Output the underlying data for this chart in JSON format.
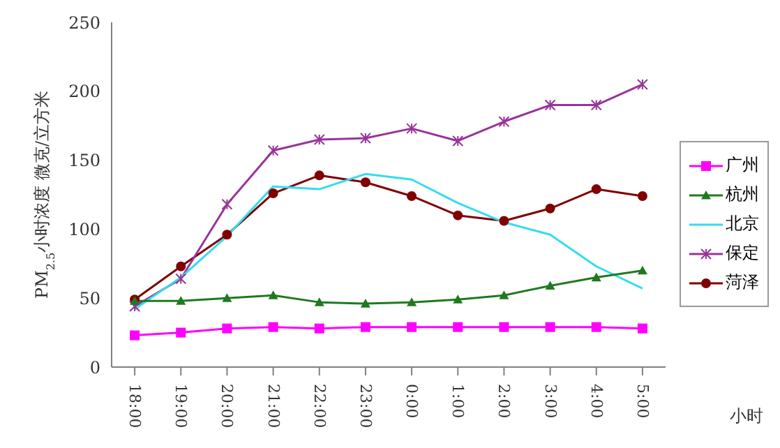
{
  "chart_data": {
    "type": "line",
    "ylabel": "PM$_{2.5}$小时浓度 微克/立方米",
    "xlabel": "小时",
    "categories": [
      "18:00",
      "19:00",
      "20:00",
      "21:00",
      "22:00",
      "23:00",
      "0:00",
      "1:00",
      "2:00",
      "3:00",
      "4:00",
      "5:00"
    ],
    "series": [
      {
        "name": "广州",
        "color": "#ff00ff",
        "marker": "square",
        "values": [
          23,
          25,
          28,
          29,
          28,
          29,
          29,
          29,
          29,
          29,
          29,
          28
        ]
      },
      {
        "name": "杭州",
        "color": "#1f7a1f",
        "marker": "triangle",
        "values": [
          48,
          48,
          50,
          52,
          47,
          46,
          47,
          49,
          52,
          59,
          65,
          70
        ]
      },
      {
        "name": "北京",
        "color": "#33ddee",
        "marker": "none",
        "values": [
          42,
          65,
          95,
          131,
          129,
          140,
          136,
          119,
          105,
          96,
          73,
          57
        ]
      },
      {
        "name": "保定",
        "color": "#993399",
        "marker": "cross",
        "values": [
          44,
          64,
          118,
          157,
          165,
          166,
          173,
          164,
          178,
          190,
          190,
          205
        ]
      },
      {
        "name": "菏泽",
        "color": "#800000",
        "marker": "circle",
        "values": [
          49,
          73,
          96,
          126,
          139,
          134,
          124,
          110,
          106,
          115,
          129,
          124
        ]
      }
    ],
    "ylim": [
      0,
      250
    ],
    "yticks": [
      0,
      50,
      100,
      150,
      200,
      250
    ],
    "grid": false,
    "legend": "right"
  }
}
